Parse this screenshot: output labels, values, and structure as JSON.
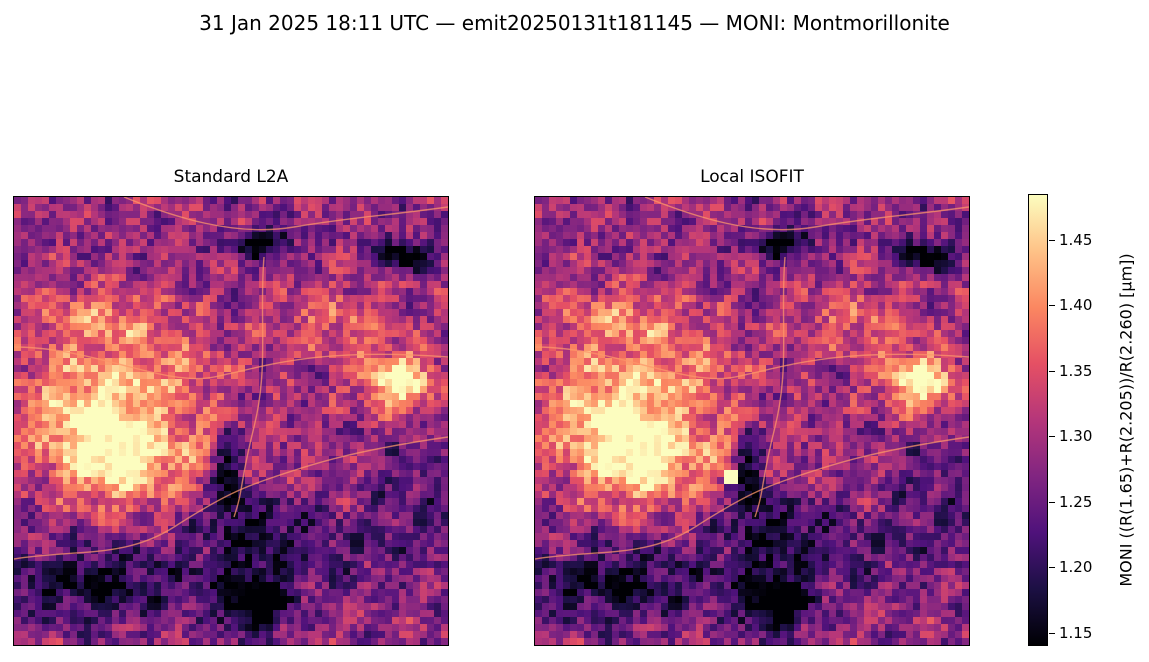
{
  "figure": {
    "title": "31 Jan 2025 18:11 UTC — emit20250131t181145 — MONI: Montmorillonite"
  },
  "colors": {
    "colormap": "magma",
    "stops": [
      "#000004",
      "#1c1044",
      "#4f127b",
      "#812581",
      "#b5367a",
      "#e55064",
      "#fb8761",
      "#fec287",
      "#fcfdbf"
    ]
  },
  "chart_data": {
    "type": "heatmap",
    "colormap": "magma",
    "panels": [
      {
        "title": "Standard L2A",
        "axes_ticks": false
      },
      {
        "title": "Local ISOFIT",
        "axes_ticks": false
      }
    ],
    "colorbar": {
      "label": "MONI  ((R(1.65)+R(2.205))/R(2.260)  [µm])",
      "range": [
        1.14,
        1.485
      ],
      "ticks": [
        1.15,
        1.2,
        1.25,
        1.3,
        1.35,
        1.4,
        1.45
      ],
      "tick_labels": [
        "1.15",
        "1.20",
        "1.25",
        "1.30",
        "1.35",
        "1.40",
        "1.45"
      ]
    }
  }
}
